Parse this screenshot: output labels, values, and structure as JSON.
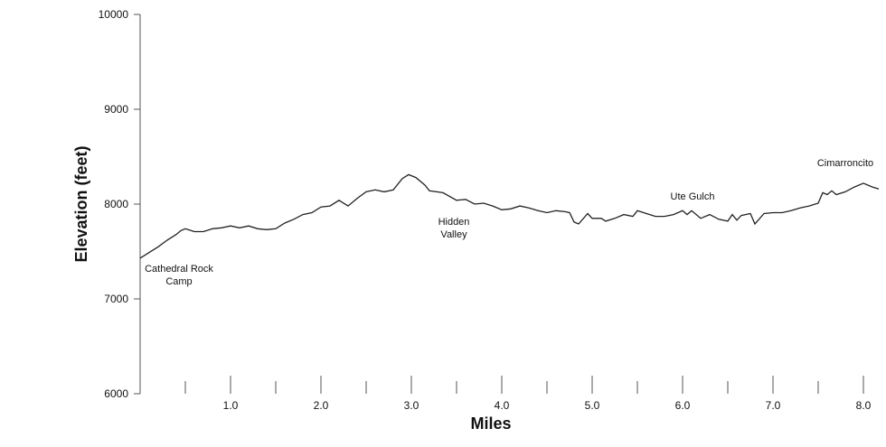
{
  "chart_data": {
    "type": "line",
    "x_label": "Miles",
    "y_label": "Elevation (feet)",
    "xlim": [
      0,
      8.17
    ],
    "ylim": [
      6000,
      10000
    ],
    "xticks": [
      {
        "value": 1,
        "label": "1.0"
      },
      {
        "value": 2,
        "label": "2.0"
      },
      {
        "value": 3,
        "label": "3.0"
      },
      {
        "value": 4,
        "label": "4.0"
      },
      {
        "value": 5,
        "label": "5.0"
      },
      {
        "value": 6,
        "label": "6.0"
      },
      {
        "value": 7,
        "label": "7.0"
      },
      {
        "value": 8,
        "label": "8.0"
      }
    ],
    "xminorticks": [
      0.5,
      1.5,
      2.5,
      3.5,
      4.5,
      5.5,
      6.5,
      7.5
    ],
    "yticks": [
      6000,
      7000,
      8000,
      9000,
      10000
    ],
    "color": "#222222",
    "x": [
      0,
      0.1,
      0.2,
      0.3,
      0.4,
      0.45,
      0.5,
      0.6,
      0.7,
      0.8,
      0.9,
      1.0,
      1.1,
      1.2,
      1.3,
      1.4,
      1.5,
      1.6,
      1.7,
      1.8,
      1.9,
      2.0,
      2.1,
      2.2,
      2.3,
      2.4,
      2.5,
      2.6,
      2.7,
      2.8,
      2.9,
      2.97,
      3.05,
      3.15,
      3.2,
      3.35,
      3.5,
      3.6,
      3.7,
      3.8,
      3.9,
      4.0,
      4.1,
      4.2,
      4.3,
      4.4,
      4.5,
      4.6,
      4.7,
      4.75,
      4.8,
      4.85,
      4.95,
      5.0,
      5.1,
      5.15,
      5.25,
      5.35,
      5.45,
      5.5,
      5.6,
      5.7,
      5.8,
      5.9,
      6.0,
      6.05,
      6.1,
      6.2,
      6.3,
      6.4,
      6.5,
      6.55,
      6.6,
      6.65,
      6.75,
      6.8,
      6.9,
      7.0,
      7.1,
      7.2,
      7.3,
      7.4,
      7.5,
      7.55,
      7.6,
      7.65,
      7.7,
      7.8,
      7.9,
      8.0,
      8.1,
      8.17
    ],
    "values": [
      7430,
      7490,
      7550,
      7620,
      7680,
      7720,
      7740,
      7710,
      7710,
      7740,
      7750,
      7770,
      7750,
      7770,
      7740,
      7730,
      7740,
      7800,
      7840,
      7890,
      7910,
      7970,
      7980,
      8040,
      7980,
      8060,
      8130,
      8150,
      8130,
      8150,
      8270,
      8310,
      8280,
      8200,
      8140,
      8120,
      8040,
      8050,
      8000,
      8010,
      7980,
      7940,
      7950,
      7980,
      7960,
      7930,
      7910,
      7930,
      7920,
      7910,
      7810,
      7790,
      7900,
      7850,
      7850,
      7820,
      7850,
      7890,
      7870,
      7930,
      7900,
      7870,
      7870,
      7890,
      7930,
      7890,
      7930,
      7850,
      7890,
      7840,
      7820,
      7890,
      7830,
      7880,
      7900,
      7790,
      7900,
      7910,
      7910,
      7930,
      7960,
      7980,
      8010,
      8120,
      8100,
      8140,
      8100,
      8130,
      8180,
      8220,
      8180,
      8160
    ],
    "annotations": [
      {
        "lines": [
          "Cathedral Rock",
          "Camp"
        ]
      },
      {
        "lines": [
          "Hidden",
          "Valley"
        ]
      },
      {
        "lines": [
          "Ute Gulch"
        ]
      },
      {
        "lines": [
          "Cimarroncito"
        ]
      }
    ]
  }
}
